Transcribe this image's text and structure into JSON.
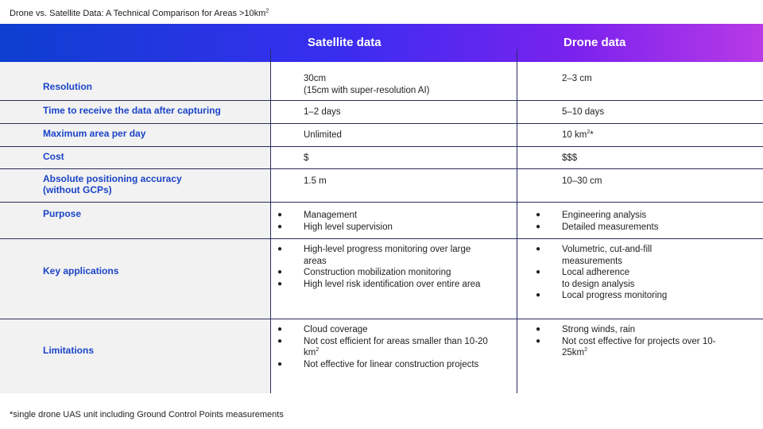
{
  "title": "Drone vs. Satellite Data: A Technical Comparison for Areas >10km",
  "title_sup": "2",
  "headers": {
    "satellite": "Satellite data",
    "drone": "Drone data"
  },
  "colors": {
    "label_blue": "#1a44c8",
    "header_start": "#0d3fd0",
    "header_end": "#b83ae6",
    "label_bg": "#f2f2f2"
  },
  "rows": {
    "resolution": {
      "label": "Resolution",
      "satellite": [
        "30cm",
        "(15cm with super-resolution AI)"
      ],
      "drone": "2–3 cm"
    },
    "time": {
      "label": "Time to receive the data after capturing",
      "satellite": "1–2 days",
      "drone": "5–10 days"
    },
    "area": {
      "label": "Maximum area per day",
      "satellite": "Unlimited",
      "drone": "10 km",
      "drone_sup": "2",
      "drone_suffix": "*"
    },
    "cost": {
      "label": "Cost",
      "satellite": "$",
      "drone": "$$$"
    },
    "accuracy": {
      "label_1": "Absolute positioning accuracy",
      "label_2": "(without GCPs)",
      "satellite": "1.5 m",
      "drone": "10–30 cm"
    },
    "purpose": {
      "label": "Purpose",
      "satellite": [
        "Management",
        "High level supervision"
      ],
      "drone": [
        "Engineering analysis",
        "Detailed measurements"
      ]
    },
    "applications": {
      "label": "Key applications",
      "satellite": [
        "High-level progress monitoring over large areas",
        "Construction mobilization monitoring",
        "High level risk identification over entire area"
      ],
      "drone": [
        "Volumetric, cut-and-fill measurements",
        "Local adherence to design analysis",
        "Local progress monitoring"
      ],
      "drone_lines": [
        [
          "Volumetric, cut-and-fill",
          "measurements"
        ],
        [
          "Local adherence",
          "to design analysis"
        ]
      ]
    },
    "limitations": {
      "label": "Limitations",
      "satellite": [
        "Cloud coverage",
        "Not cost efficient for areas smaller than 10-20 km",
        "Not effective for linear construction projects"
      ],
      "satellite_sup": "2",
      "drone": [
        "Strong winds, rain",
        "Not cost effective for projects over 10-25km"
      ],
      "drone_sup": "2"
    }
  },
  "bullet": "●",
  "footnote": "*single drone UAS unit including Ground Control Points measurements"
}
